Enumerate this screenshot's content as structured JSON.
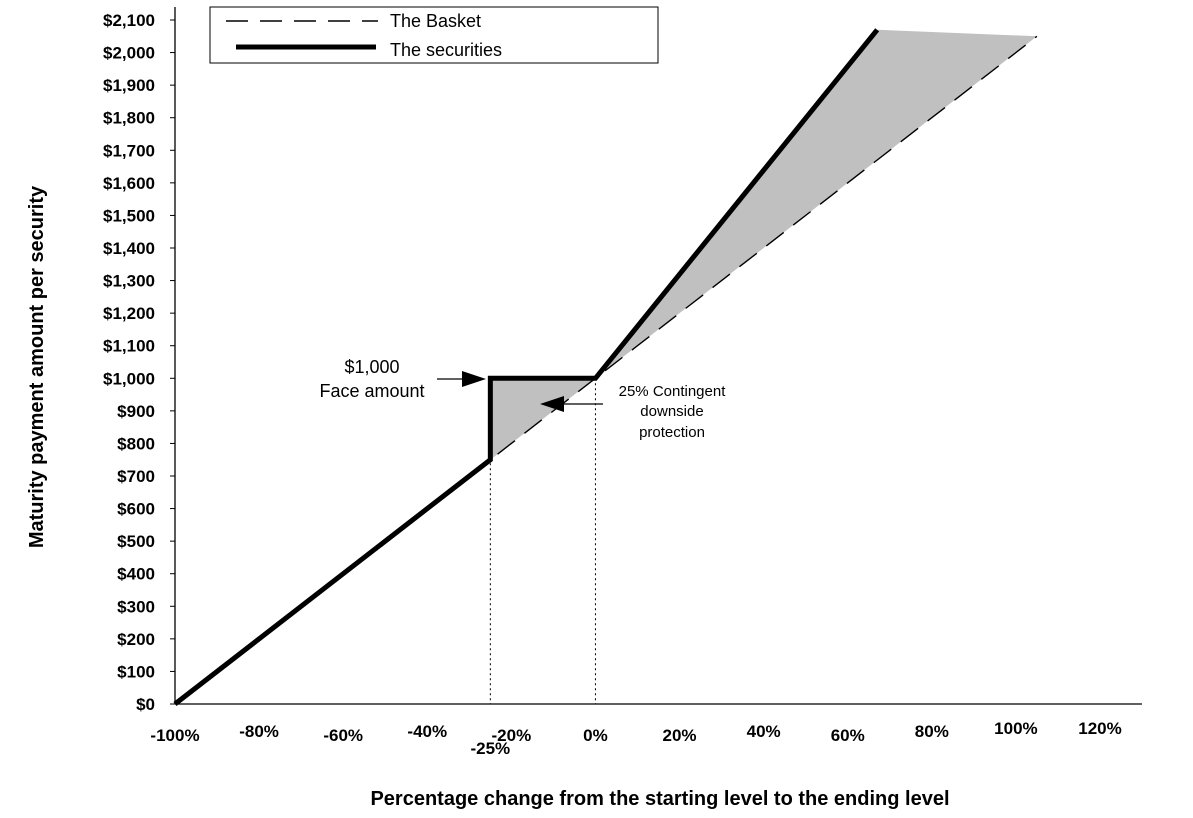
{
  "chart_data": {
    "type": "line",
    "xlabel": "Percentage change from the starting level to the ending level",
    "ylabel": "Maturity payment amount per security",
    "xlim": [
      -100,
      120
    ],
    "ylim": [
      0,
      2100
    ],
    "x_ticks": [
      "-100%",
      "-80%",
      "-60%",
      "-40%",
      "-20%",
      "0%",
      "20%",
      "40%",
      "60%",
      "80%",
      "100%",
      "120%"
    ],
    "x_ticks_emphasis": [
      "-25%",
      "0%"
    ],
    "y_ticks": [
      "$0",
      "$100",
      "$200",
      "$300",
      "$400",
      "$500",
      "$600",
      "$700",
      "$800",
      "$900",
      "$1,000",
      "$1,100",
      "$1,200",
      "$1,300",
      "$1,400",
      "$1,500",
      "$1,600",
      "$1,700",
      "$1,800",
      "$1,900",
      "$2,000",
      "$2,100"
    ],
    "legend": {
      "position": "top-left",
      "entries": [
        "The Basket",
        "The securities"
      ]
    },
    "series": [
      {
        "name": "The Basket",
        "style": "dashed",
        "x": [
          -100,
          105
        ],
        "y": [
          0,
          2050
        ]
      },
      {
        "name": "The securities",
        "style": "solid-thick",
        "x": [
          -100,
          -25,
          -25,
          0,
          67
        ],
        "y": [
          0,
          750,
          1000,
          1000,
          2070
        ]
      }
    ],
    "shaded_regions": [
      {
        "x": [
          -25,
          -25,
          0
        ],
        "y": [
          1000,
          750,
          1000
        ],
        "color": "#c0c0c0"
      },
      {
        "x": [
          0,
          67,
          105
        ],
        "y": [
          1000,
          2070,
          2050
        ],
        "color": "#c0c0c0"
      }
    ],
    "reference_lines": [
      {
        "x": -25,
        "style": "dotted"
      },
      {
        "x": 0,
        "style": "dotted"
      }
    ],
    "annotations": [
      {
        "id": "face",
        "lines": [
          "$1,000",
          "Face amount"
        ]
      },
      {
        "id": "protection",
        "lines": [
          "25% Contingent",
          "downside",
          "protection"
        ]
      }
    ],
    "grid": false
  }
}
